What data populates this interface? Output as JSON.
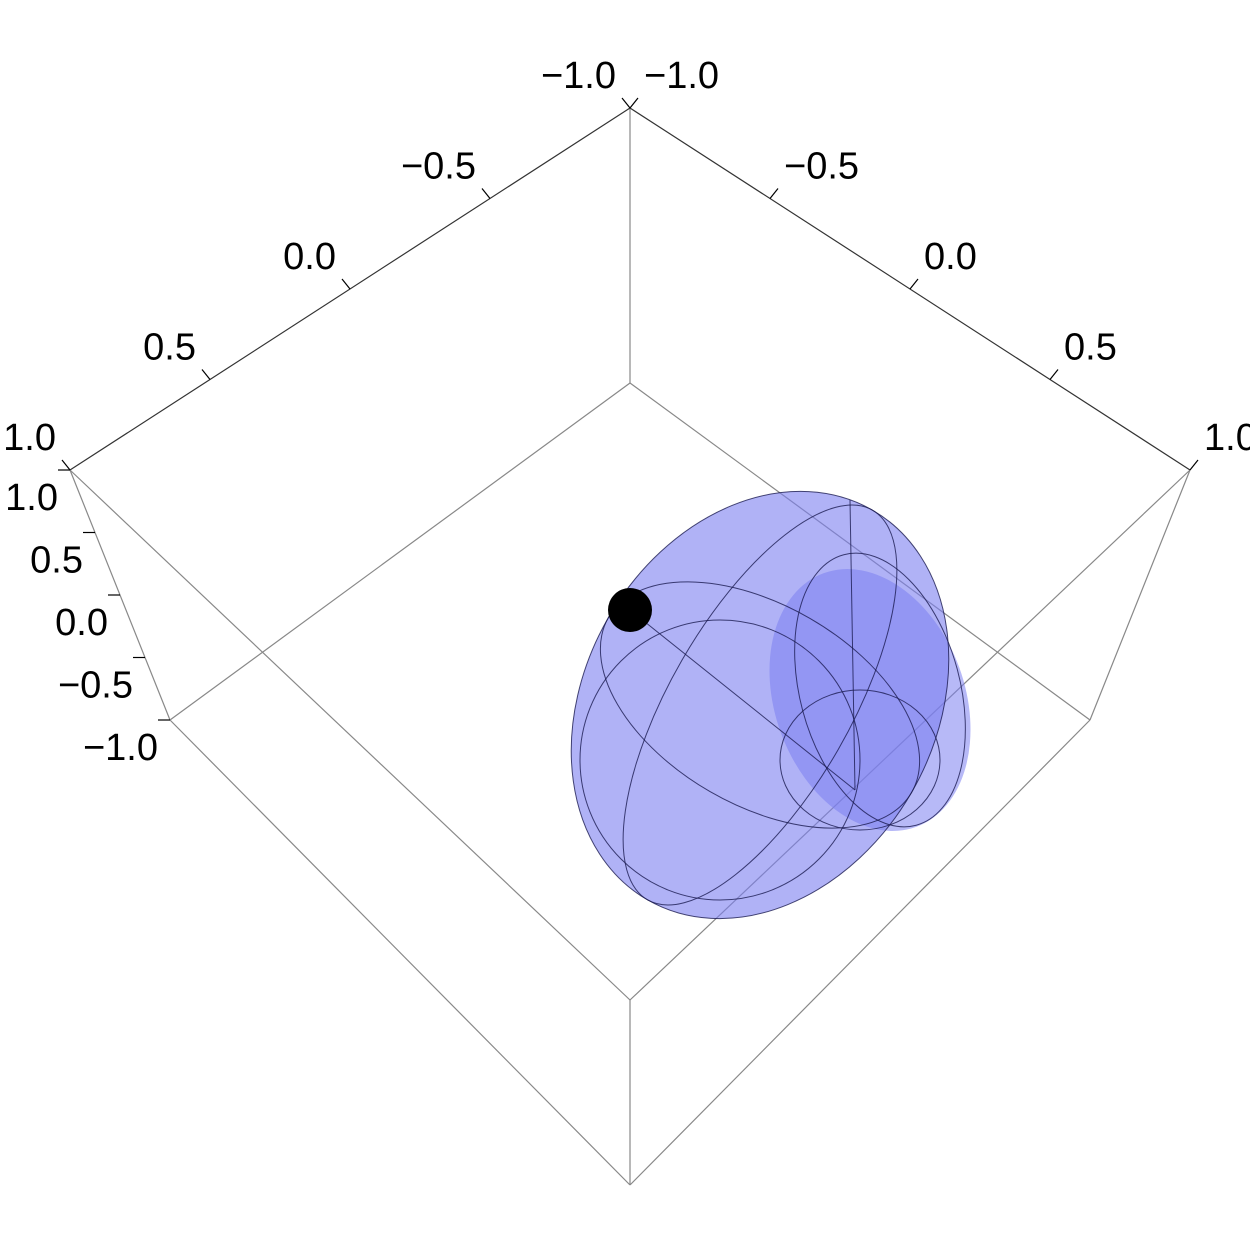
{
  "chart_data": {
    "type": "surface3d",
    "xlim": [
      -1,
      1
    ],
    "xticks": [
      {
        "value": -1,
        "label": "−1.0"
      },
      {
        "value": -0.5,
        "label": "−0.5"
      },
      {
        "value": 0,
        "label": "0.0"
      },
      {
        "value": 0.5,
        "label": "0.5"
      },
      {
        "value": 1,
        "label": "1.0"
      }
    ],
    "ylim": [
      -1,
      1
    ],
    "yticks": [
      {
        "value": -1,
        "label": "−1.0"
      },
      {
        "value": -0.5,
        "label": "−0.5"
      },
      {
        "value": 0,
        "label": "0.0"
      },
      {
        "value": 0.5,
        "label": "0.5"
      },
      {
        "value": 1,
        "label": "1.0"
      }
    ],
    "zlim": [
      -1,
      1
    ],
    "zticks": [
      {
        "value": 1,
        "label": "1.0"
      },
      {
        "value": 0.5,
        "label": "0.5"
      },
      {
        "value": 0,
        "label": "0.0"
      },
      {
        "value": -0.5,
        "label": "−0.5"
      },
      {
        "value": -1,
        "label": "−1.0"
      }
    ],
    "color": "#7b7ff0"
  }
}
